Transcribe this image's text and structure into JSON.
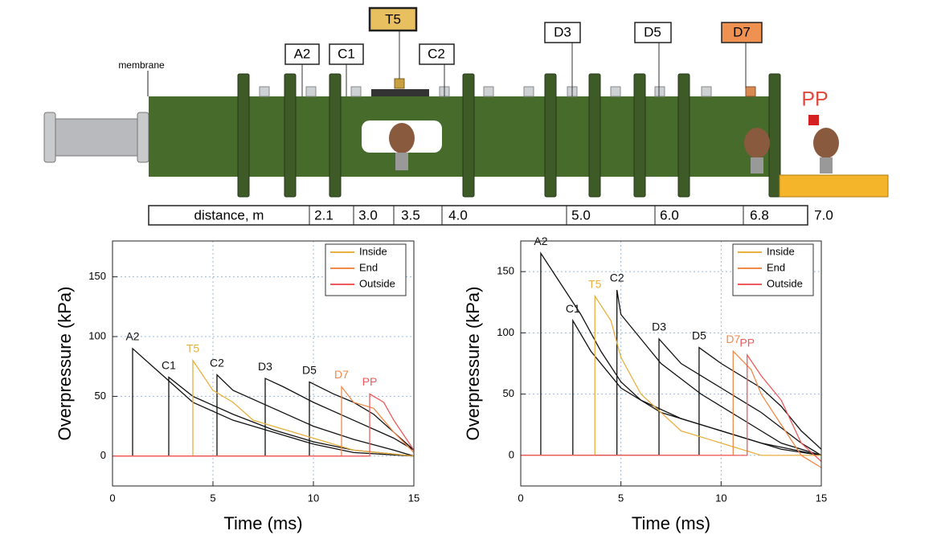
{
  "diagram": {
    "membrane": "membrane",
    "sensors": [
      "A2",
      "C1",
      "T5",
      "C2",
      "D3",
      "D5",
      "D7",
      "PP"
    ],
    "distance": {
      "label": "distance, m",
      "marks": [
        "2.1",
        "3.0",
        "3.5",
        "4.0",
        "5.0",
        "6.0",
        "6.8",
        "7.0"
      ]
    }
  },
  "chart_data": [
    {
      "type": "line",
      "xlabel": "Time (ms)",
      "ylabel": "Overpressure (kPa)",
      "xlim": [
        0,
        15
      ],
      "ylim": [
        -25,
        180
      ],
      "xticks": [
        0,
        5,
        10,
        15
      ],
      "yticks": [
        0,
        50,
        100,
        150
      ],
      "grid": true,
      "legend": "top-right",
      "series": [
        {
          "label": "A2",
          "color": "#111111",
          "x": [
            0,
            1.0,
            1.0,
            2,
            3,
            4,
            6,
            8,
            10,
            12,
            15
          ],
          "values": [
            0,
            0,
            90,
            75,
            60,
            45,
            30,
            20,
            10,
            3,
            0
          ]
        },
        {
          "label": "C1",
          "color": "#111111",
          "x": [
            0,
            2.8,
            2.8,
            4,
            6,
            8,
            10,
            12,
            15
          ],
          "values": [
            0,
            0,
            66,
            50,
            35,
            22,
            12,
            5,
            0
          ]
        },
        {
          "label": "C2",
          "color": "#111111",
          "x": [
            0,
            5.2,
            5.2,
            6,
            8,
            10,
            12,
            14,
            15
          ],
          "values": [
            0,
            0,
            68,
            55,
            40,
            25,
            14,
            5,
            0
          ]
        },
        {
          "label": "D3",
          "color": "#111111",
          "x": [
            0,
            7.6,
            7.6,
            8.5,
            10,
            12,
            14,
            15
          ],
          "values": [
            0,
            0,
            65,
            58,
            45,
            30,
            15,
            5
          ]
        },
        {
          "label": "D5",
          "color": "#111111",
          "x": [
            0,
            9.8,
            9.8,
            11,
            12,
            13,
            14,
            15
          ],
          "values": [
            0,
            0,
            62,
            52,
            45,
            35,
            20,
            5
          ]
        },
        {
          "name": "Inside",
          "label": "T5",
          "color": "#e8b040",
          "x": [
            0,
            4.0,
            4.0,
            5,
            6,
            7,
            8,
            10,
            12,
            15
          ],
          "values": [
            0,
            0,
            80,
            55,
            45,
            30,
            25,
            15,
            5,
            0
          ]
        },
        {
          "name": "End",
          "label": "D7",
          "color": "#f08a4a",
          "x": [
            0,
            11.4,
            11.4,
            12,
            13,
            14,
            15
          ],
          "values": [
            0,
            0,
            58,
            45,
            40,
            20,
            3
          ]
        },
        {
          "name": "Outside",
          "label": "PP",
          "color": "#f05a5a",
          "x": [
            0,
            12.8,
            12.8,
            13.5,
            14,
            15
          ],
          "values": [
            0,
            0,
            52,
            45,
            30,
            5
          ]
        }
      ]
    },
    {
      "type": "line",
      "xlabel": "Time (ms)",
      "ylabel": "Overpressure (kPa)",
      "xlim": [
        0,
        15
      ],
      "ylim": [
        -25,
        175
      ],
      "xticks": [
        0,
        5,
        10,
        15
      ],
      "yticks": [
        0,
        50,
        100,
        150
      ],
      "grid": true,
      "legend": "top-right",
      "series": [
        {
          "label": "A2",
          "color": "#111111",
          "x": [
            0,
            1,
            1,
            2,
            3,
            4,
            5,
            6,
            8,
            10,
            12,
            15
          ],
          "values": [
            0,
            0,
            165,
            140,
            115,
            85,
            60,
            45,
            30,
            20,
            10,
            0
          ]
        },
        {
          "label": "C1",
          "color": "#111111",
          "x": [
            0,
            2.6,
            2.6,
            3.5,
            5,
            7,
            9,
            11,
            13,
            15
          ],
          "values": [
            0,
            0,
            110,
            85,
            55,
            35,
            25,
            15,
            5,
            0
          ]
        },
        {
          "label": "C2",
          "color": "#111111",
          "x": [
            0,
            4.8,
            4.8,
            5,
            6,
            7,
            9,
            11,
            13,
            15
          ],
          "values": [
            0,
            0,
            135,
            115,
            95,
            75,
            50,
            30,
            10,
            0
          ]
        },
        {
          "label": "D3",
          "color": "#111111",
          "x": [
            0,
            6.9,
            6.9,
            8,
            10,
            12,
            14,
            15
          ],
          "values": [
            0,
            0,
            95,
            75,
            55,
            35,
            10,
            0
          ]
        },
        {
          "label": "D5",
          "color": "#111111",
          "x": [
            0,
            8.9,
            8.9,
            10,
            11,
            12,
            13,
            14,
            15
          ],
          "values": [
            0,
            0,
            88,
            75,
            65,
            55,
            40,
            20,
            5
          ]
        },
        {
          "name": "Inside",
          "label": "T5",
          "color": "#e8b040",
          "x": [
            0,
            3.7,
            3.7,
            4.5,
            5,
            6,
            7,
            8,
            10,
            12,
            15
          ],
          "values": [
            0,
            0,
            130,
            110,
            80,
            50,
            35,
            20,
            10,
            0,
            0
          ]
        },
        {
          "name": "End",
          "label": "D7",
          "color": "#f08a4a",
          "x": [
            0,
            10.6,
            10.6,
            11.5,
            12,
            13,
            14,
            15
          ],
          "values": [
            0,
            0,
            85,
            70,
            50,
            25,
            0,
            -10
          ]
        },
        {
          "name": "Outside",
          "label": "PP",
          "color": "#f05a5a",
          "x": [
            0,
            11.3,
            11.3,
            12,
            13,
            14,
            15
          ],
          "values": [
            0,
            0,
            82,
            65,
            45,
            10,
            -5
          ]
        }
      ]
    }
  ]
}
